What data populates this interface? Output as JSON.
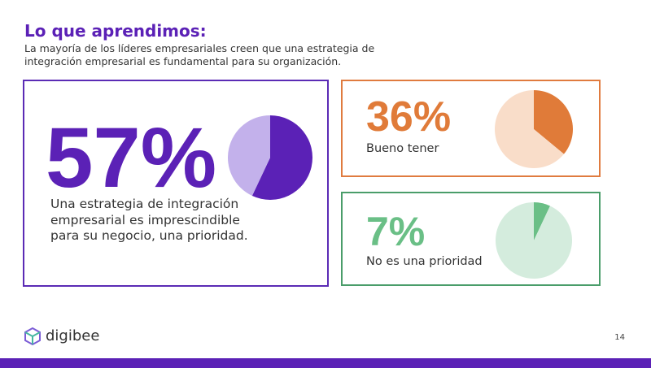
{
  "title": "Lo que aprendimos:",
  "subtitle": "La mayoría de los líderes empresariales creen que una estrategia de integración empresarial es fundamental para su organización.",
  "chart_data": [
    {
      "type": "pie",
      "categories": [
        "Una estrategia de integración empresarial es imprescindible para su negocio, una prioridad.",
        null
      ],
      "values": [
        57,
        43
      ],
      "value_labels": [
        "57%",
        null
      ],
      "colors": [
        "#5b21b6",
        "#c3b1eb"
      ],
      "border": "#5b2bb5"
    },
    {
      "type": "pie",
      "categories": [
        "Bueno tener",
        null
      ],
      "values": [
        36,
        64
      ],
      "value_labels": [
        "36%",
        null
      ],
      "colors": [
        "#e07b39",
        "#f9ddc9"
      ],
      "border": "#e07b3f"
    },
    {
      "type": "pie",
      "categories": [
        "No es una prioridad",
        null
      ],
      "values": [
        7,
        93
      ],
      "value_labels": [
        "7%",
        null
      ],
      "colors": [
        "#6abf86",
        "#d4ecdd"
      ],
      "border": "#4a9d6a"
    }
  ],
  "footer": {
    "logo": "digibee",
    "page": "14"
  }
}
